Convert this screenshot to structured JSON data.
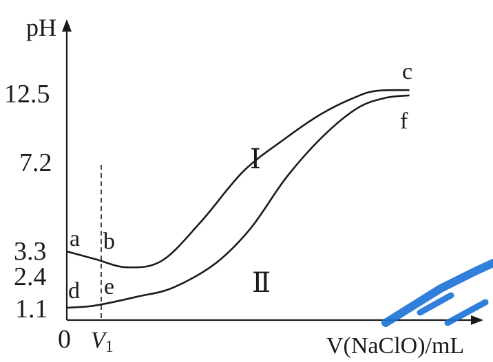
{
  "chart_data": {
    "type": "line",
    "ylabel": "pH",
    "xlabel": "V(NaClO)/mL",
    "origin_label": "0",
    "x_marker": {
      "label": "V",
      "subscript": "1"
    },
    "y_ticks": [
      "12.5",
      "7.2",
      "3.3",
      "2.4",
      "1.1"
    ],
    "series": [
      {
        "name": "Ⅰ",
        "start_label": "a",
        "marker_label": "b",
        "end_label": "c",
        "points": [
          [
            0,
            3.3
          ],
          [
            0.08,
            3.05
          ],
          [
            0.17,
            2.78
          ],
          [
            0.27,
            3.0
          ],
          [
            0.38,
            4.6
          ],
          [
            0.5,
            6.8
          ],
          [
            0.62,
            9.0
          ],
          [
            0.72,
            10.8
          ],
          [
            0.82,
            12.1
          ],
          [
            0.88,
            12.55
          ],
          [
            0.97,
            12.6
          ]
        ]
      },
      {
        "name": "Ⅱ",
        "start_label": "d",
        "marker_label": "e",
        "end_label": "f",
        "points": [
          [
            0,
            1.1
          ],
          [
            0.08,
            1.2
          ],
          [
            0.2,
            1.6
          ],
          [
            0.3,
            2.0
          ],
          [
            0.42,
            2.9
          ],
          [
            0.52,
            4.3
          ],
          [
            0.62,
            6.5
          ],
          [
            0.72,
            9.0
          ],
          [
            0.82,
            11.2
          ],
          [
            0.9,
            12.0
          ],
          [
            0.97,
            12.2
          ]
        ]
      }
    ]
  },
  "watermark": {
    "color": "#1a72d6"
  }
}
